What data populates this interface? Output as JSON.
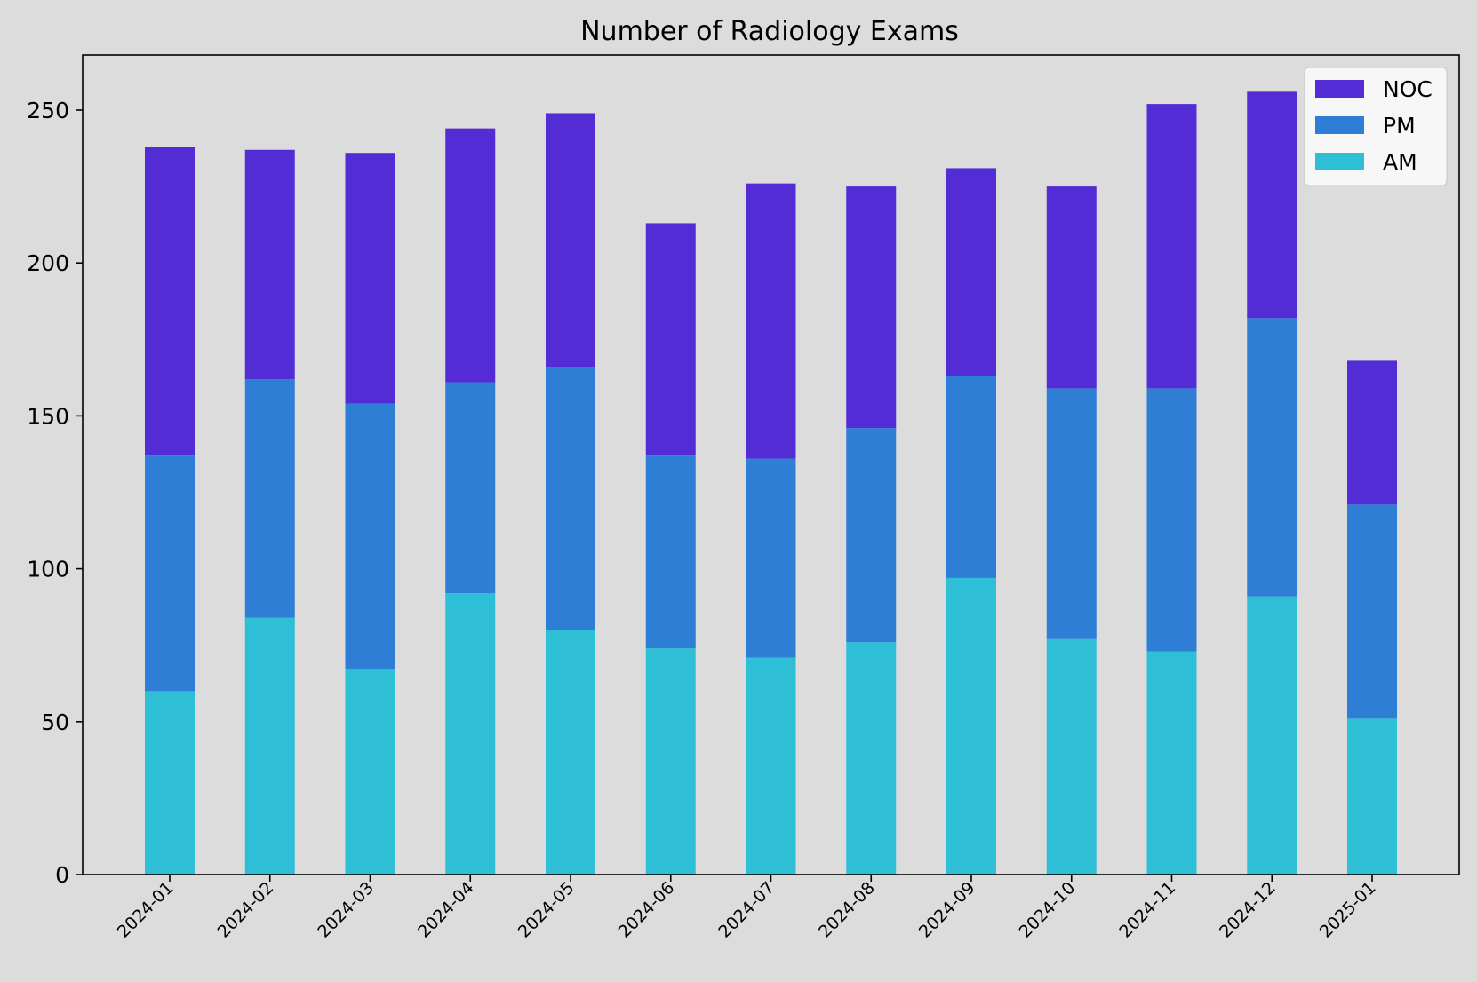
{
  "chart_data": {
    "type": "bar",
    "stacked": true,
    "title": "Number of Radiology Exams",
    "xlabel": "",
    "ylabel": "",
    "ylim": [
      0,
      268
    ],
    "yticks": [
      0,
      50,
      100,
      150,
      200,
      250
    ],
    "categories": [
      "2024-01",
      "2024-02",
      "2024-03",
      "2024-04",
      "2024-05",
      "2024-06",
      "2024-07",
      "2024-08",
      "2024-09",
      "2024-10",
      "2024-11",
      "2024-12",
      "2025-01"
    ],
    "series": [
      {
        "name": "AM",
        "color": "#2ebfd6",
        "values": [
          60,
          84,
          67,
          92,
          80,
          74,
          71,
          76,
          97,
          77,
          73,
          91,
          51
        ]
      },
      {
        "name": "PM",
        "color": "#2f7ed5",
        "values": [
          77,
          78,
          87,
          69,
          86,
          63,
          65,
          70,
          66,
          82,
          86,
          91,
          70
        ]
      },
      {
        "name": "NOC",
        "color": "#532cd6",
        "values": [
          101,
          75,
          82,
          83,
          83,
          76,
          90,
          79,
          68,
          66,
          93,
          74,
          47
        ]
      }
    ],
    "legend": {
      "position": "top-right",
      "order": [
        "NOC",
        "PM",
        "AM"
      ]
    },
    "grid": false,
    "background": "#dcdcdc",
    "legend_background": "#f7f7f7"
  }
}
